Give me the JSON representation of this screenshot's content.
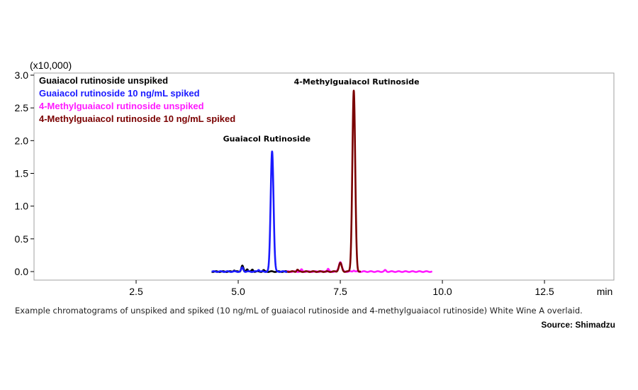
{
  "chart_data": {
    "type": "line",
    "y_multiplier_label": "(x10,000)",
    "x_unit_label": "min",
    "xlim": [
      0,
      14.2
    ],
    "ylim": [
      -0.05,
      3.0
    ],
    "x_ticks": [
      2.5,
      5.0,
      7.5,
      10.0,
      12.5
    ],
    "x_tick_labels": [
      "2.5",
      "5.0",
      "7.5",
      "10.0",
      "12.5"
    ],
    "y_ticks": [
      0.0,
      0.5,
      1.0,
      1.5,
      2.0,
      2.5,
      3.0
    ],
    "y_tick_labels": [
      "0.0",
      "0.5",
      "1.0",
      "1.5",
      "2.0",
      "2.5",
      "3.0"
    ],
    "legend_position": "top-left",
    "series": [
      {
        "name": "Guaiacol rutinoside unspiked",
        "color": "#000000",
        "x_range": [
          4.35,
          6.2
        ],
        "baseline": 0.0,
        "peaks": [
          {
            "x": 4.9,
            "h": 0.02,
            "w": 0.02
          },
          {
            "x": 5.1,
            "h": 0.09,
            "w": 0.025
          },
          {
            "x": 5.22,
            "h": 0.04,
            "w": 0.02
          },
          {
            "x": 5.35,
            "h": 0.03,
            "w": 0.02
          },
          {
            "x": 5.62,
            "h": 0.02,
            "w": 0.02
          }
        ]
      },
      {
        "name": "Guaiacol rutinoside 10 ng/mL spiked",
        "color": "#1a1aff",
        "x_range": [
          4.35,
          6.2
        ],
        "baseline": 0.0,
        "peaks": [
          {
            "x": 5.1,
            "h": 0.06,
            "w": 0.025
          },
          {
            "x": 5.5,
            "h": 0.03,
            "w": 0.02
          },
          {
            "x": 5.83,
            "h": 1.84,
            "w": 0.035
          }
        ]
      },
      {
        "name": "4-Methylguaiacol rutinoside unspiked",
        "color": "#ff1aff",
        "x_range": [
          6.2,
          9.75
        ],
        "baseline": 0.0,
        "peaks": [
          {
            "x": 6.55,
            "h": 0.03,
            "w": 0.02
          },
          {
            "x": 7.2,
            "h": 0.04,
            "w": 0.02
          },
          {
            "x": 7.5,
            "h": 0.15,
            "w": 0.035
          },
          {
            "x": 7.83,
            "h": 0.02,
            "w": 0.02
          },
          {
            "x": 8.6,
            "h": 0.02,
            "w": 0.02
          }
        ]
      },
      {
        "name": "4-Methylguaiacol rutinoside 10 ng/mL spiked",
        "color": "#7a0000",
        "x_range": [
          6.2,
          8.0
        ],
        "baseline": 0.0,
        "peaks": [
          {
            "x": 6.45,
            "h": 0.03,
            "w": 0.02
          },
          {
            "x": 7.5,
            "h": 0.13,
            "w": 0.035
          },
          {
            "x": 7.83,
            "h": 2.76,
            "w": 0.035
          }
        ]
      }
    ],
    "annotations": [
      {
        "text": "Guaiacol Rutinoside",
        "x": 5.7,
        "y": 1.99
      },
      {
        "text": "4-Methylguaiacol Rutinoside",
        "x": 7.9,
        "y": 2.86
      }
    ]
  },
  "caption": "Example chromatograms of unspiked and spiked (10 ng/mL of guaiacol rutinoside and 4-methylguaiacol rutinoside) White Wine A overlaid.",
  "source": "Source: Shimadzu"
}
